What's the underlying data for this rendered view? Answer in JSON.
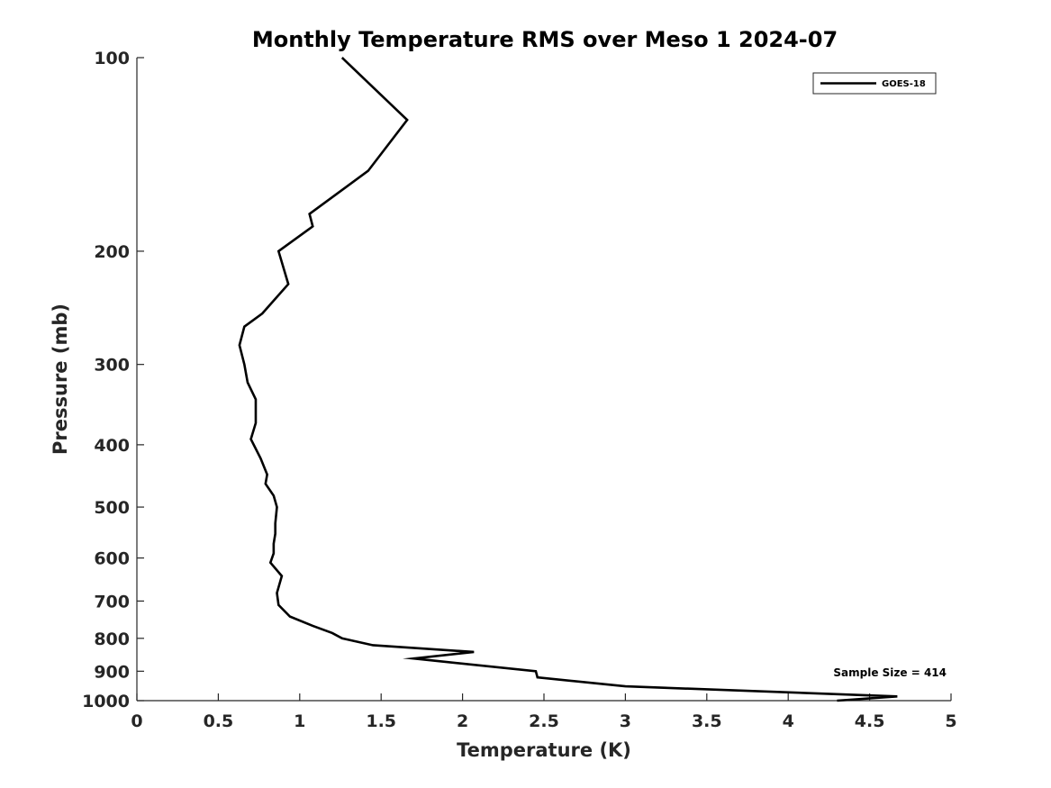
{
  "chart_data": {
    "type": "line",
    "title": "Monthly Temperature RMS over Meso 1  2024-07",
    "xlabel": "Temperature (K)",
    "ylabel": "Pressure (mb)",
    "xlim": [
      0,
      5
    ],
    "ylim": [
      100,
      1000
    ],
    "y_scale": "log",
    "y_reversed": true,
    "x_ticks": [
      0,
      0.5,
      1,
      1.5,
      2,
      2.5,
      3,
      3.5,
      4,
      4.5,
      5
    ],
    "x_tick_labels": [
      "0",
      "0.5",
      "1",
      "1.5",
      "2",
      "2.5",
      "3",
      "3.5",
      "4",
      "4.5",
      "5"
    ],
    "y_ticks": [
      100,
      200,
      300,
      400,
      500,
      600,
      700,
      800,
      900,
      1000
    ],
    "y_tick_labels": [
      "100",
      "200",
      "300",
      "400",
      "500",
      "600",
      "700",
      "800",
      "900",
      "1000"
    ],
    "grid": false,
    "legend_position": "top-right",
    "series": [
      {
        "name": "GOES-18",
        "color": "#000000",
        "points": [
          [
            1.26,
            100
          ],
          [
            1.66,
            125
          ],
          [
            1.42,
            150
          ],
          [
            1.06,
            175
          ],
          [
            1.08,
            183
          ],
          [
            0.87,
            200
          ],
          [
            0.93,
            225
          ],
          [
            0.77,
            250
          ],
          [
            0.66,
            262
          ],
          [
            0.63,
            280
          ],
          [
            0.66,
            300
          ],
          [
            0.68,
            320
          ],
          [
            0.73,
            340
          ],
          [
            0.73,
            370
          ],
          [
            0.7,
            392
          ],
          [
            0.76,
            420
          ],
          [
            0.8,
            445
          ],
          [
            0.79,
            460
          ],
          [
            0.84,
            480
          ],
          [
            0.86,
            500
          ],
          [
            0.85,
            530
          ],
          [
            0.85,
            550
          ],
          [
            0.84,
            570
          ],
          [
            0.84,
            590
          ],
          [
            0.82,
            610
          ],
          [
            0.89,
            640
          ],
          [
            0.86,
            680
          ],
          [
            0.87,
            710
          ],
          [
            0.94,
            740
          ],
          [
            1.08,
            765
          ],
          [
            1.2,
            785
          ],
          [
            1.26,
            800
          ],
          [
            1.45,
            820
          ],
          [
            2.07,
            840
          ],
          [
            1.7,
            860
          ],
          [
            2.45,
            900
          ],
          [
            2.46,
            920
          ],
          [
            3.0,
            950
          ],
          [
            4.67,
            985
          ],
          [
            4.3,
            1000
          ]
        ]
      }
    ],
    "annotation": "Sample Size = 414"
  }
}
